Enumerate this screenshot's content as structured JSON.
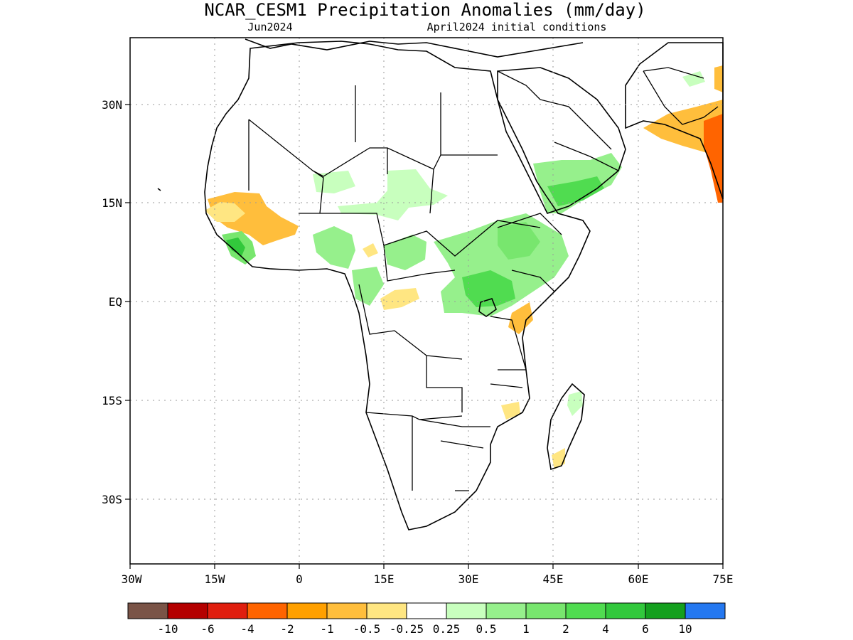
{
  "title": "NCAR_CESM1 Precipitation Anomalies (mm/day)",
  "subtitle_left": "Jun2024",
  "subtitle_right": "April2024 initial conditions",
  "lat_labels": [
    "30N",
    "15N",
    "EQ",
    "15S",
    "30S"
  ],
  "lon_labels": [
    "30W",
    "15W",
    "0",
    "15E",
    "30E",
    "45E",
    "60E",
    "75E"
  ],
  "legend": {
    "colors": [
      "#7a5447",
      "#b40000",
      "#e01e0e",
      "#ff6400",
      "#ffa000",
      "#ffbe3c",
      "#ffe682",
      "#ffffff",
      "#c8ffbe",
      "#96f08c",
      "#78e66e",
      "#50dc50",
      "#32c83c",
      "#14a01e",
      "#2478f0"
    ],
    "labels": [
      "-10",
      "-6",
      "-4",
      "-2",
      "-1",
      "-0.5",
      "-0.25",
      "0.25",
      "0.5",
      "1",
      "2",
      "4",
      "6",
      "10"
    ]
  }
}
